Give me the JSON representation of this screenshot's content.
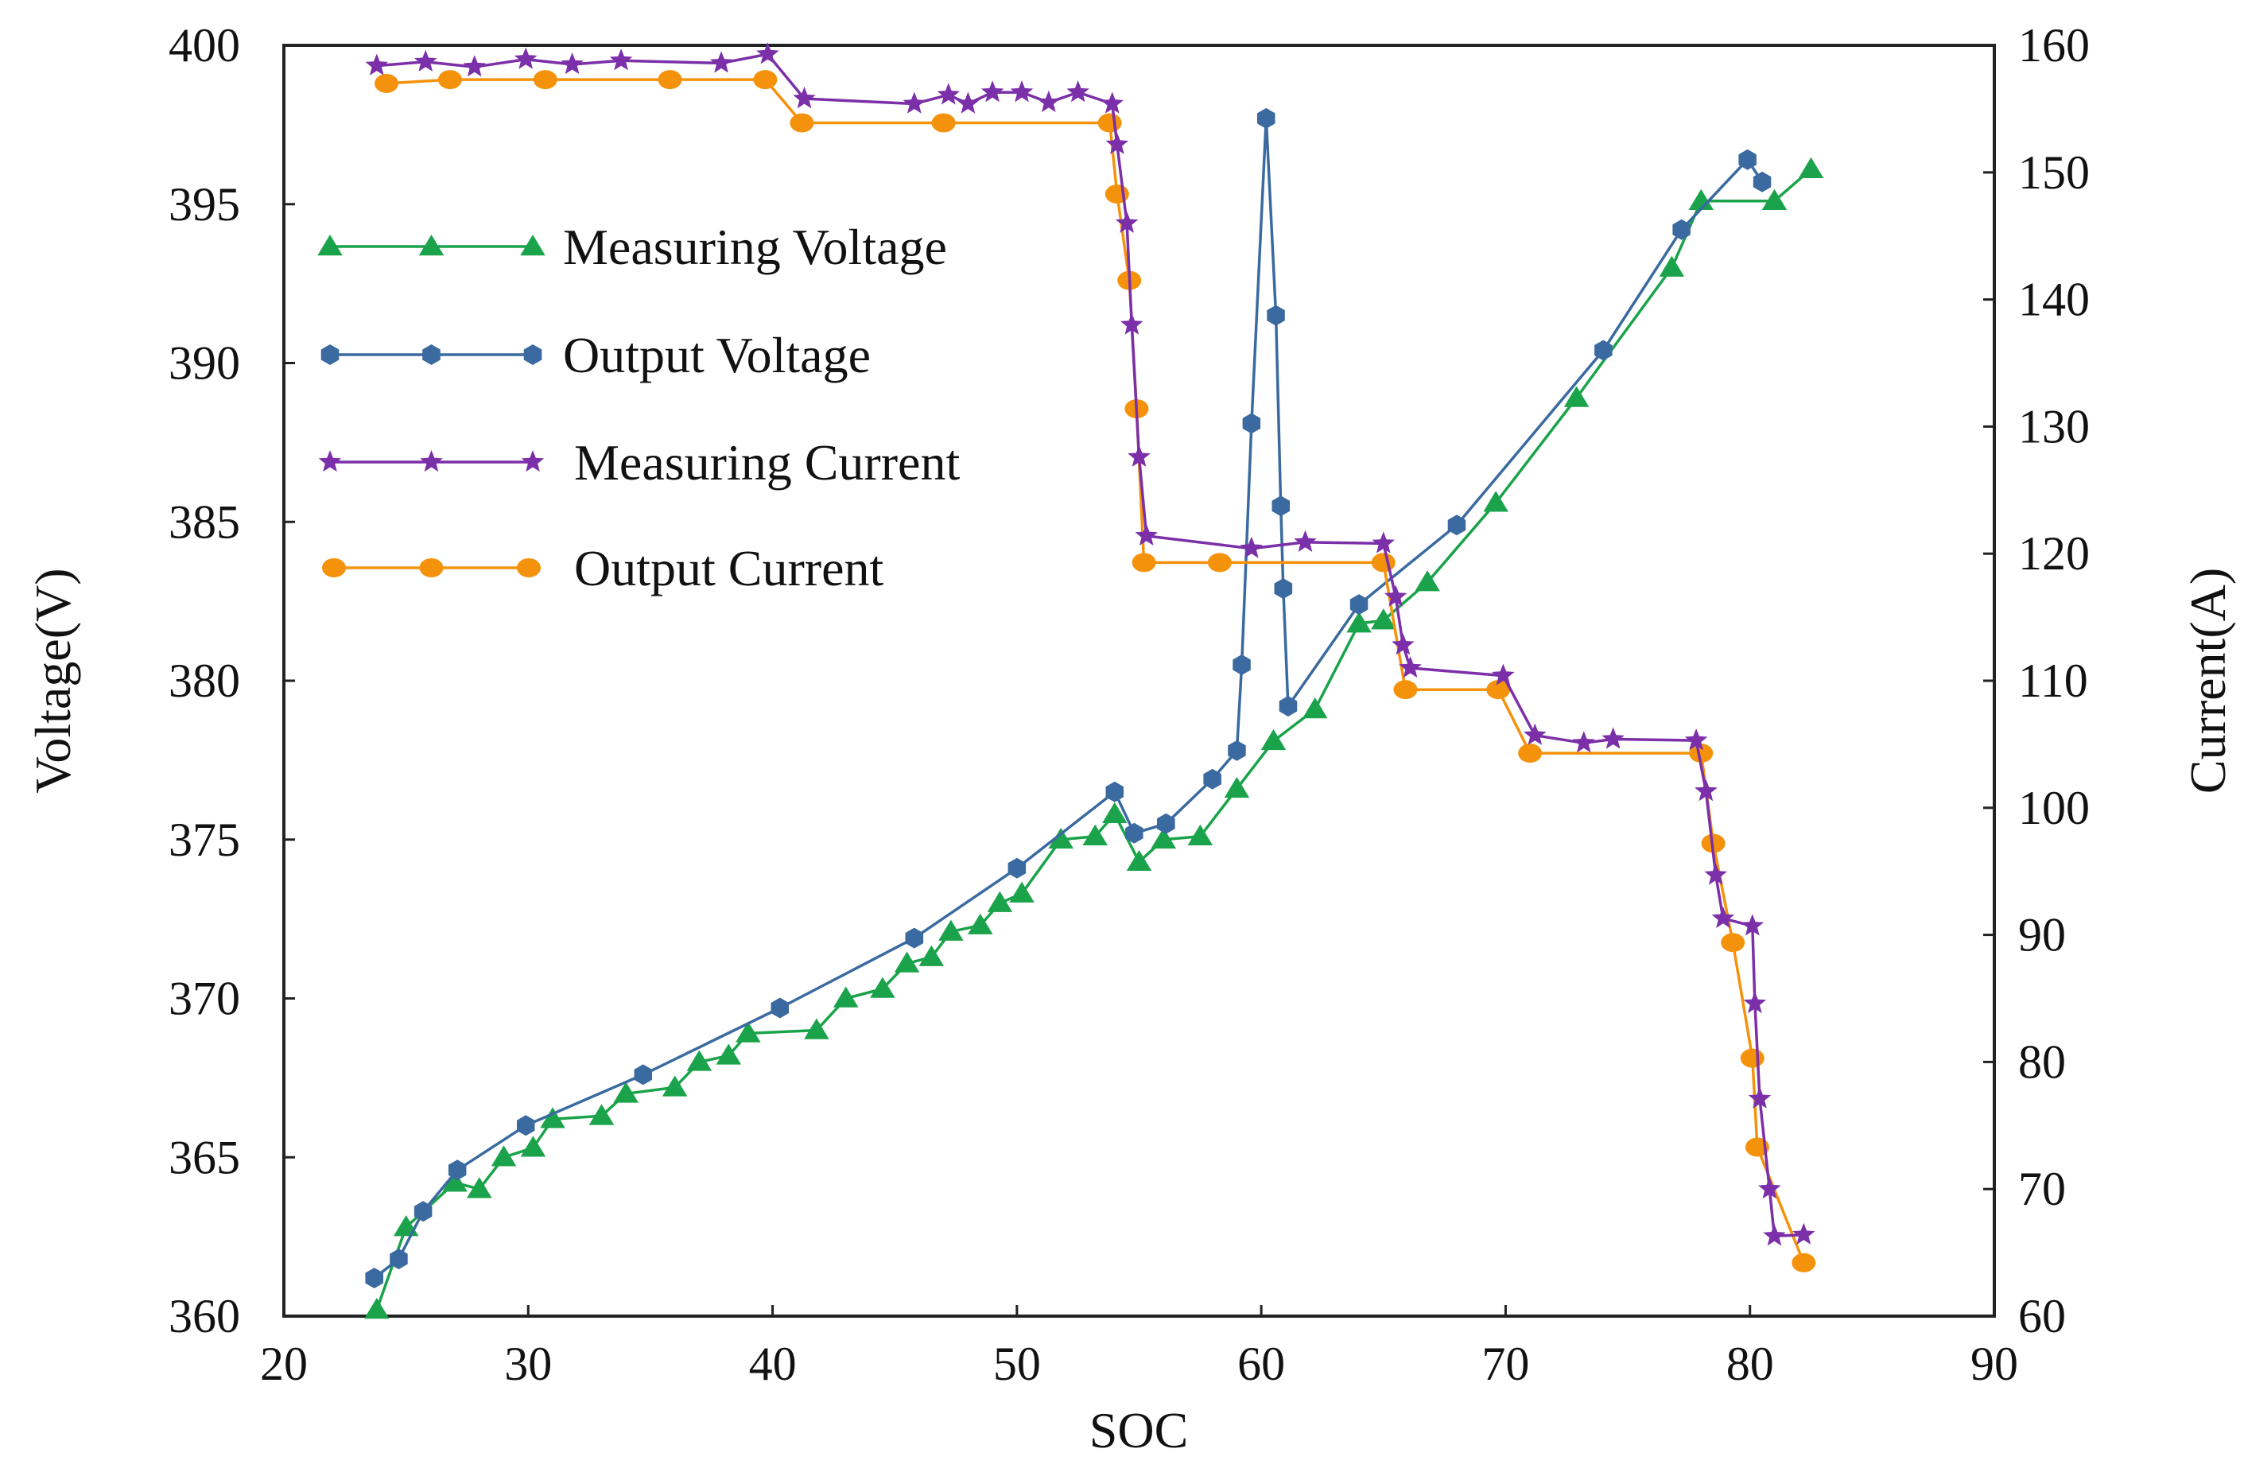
{
  "chart_data": {
    "type": "line",
    "title": "",
    "xlabel": "SOC",
    "ylabel_left": "Voltage(V)",
    "ylabel_right": "Current(A)",
    "xlim": [
      20,
      90
    ],
    "ylim_left": [
      360,
      400
    ],
    "ylim_right": [
      60,
      160
    ],
    "x_ticks": [
      20,
      30,
      40,
      50,
      60,
      70,
      80,
      90
    ],
    "y_left_ticks": [
      360,
      365,
      370,
      375,
      380,
      385,
      390,
      395,
      400
    ],
    "y_right_ticks": [
      60,
      70,
      80,
      90,
      100,
      110,
      120,
      130,
      140,
      150,
      160
    ],
    "grid": false,
    "legend_position": "upper-left",
    "series": [
      {
        "name": "Measuring Voltage",
        "axis": "left",
        "color": "#1aa34a",
        "marker": "triangle",
        "x": [
          23.8,
          25,
          27,
          28,
          29,
          30.2,
          31,
          33,
          34,
          36,
          37,
          38.2,
          39,
          41.8,
          43,
          44.5,
          45.5,
          46.5,
          47.3,
          48.5,
          49.3,
          50.2,
          51.8,
          53.2,
          54,
          55,
          56,
          57.5,
          59,
          60.5,
          62.2,
          64,
          65,
          66.8,
          69.6,
          72.9,
          76.8,
          78,
          81,
          82.5
        ],
        "y": [
          360.2,
          362.8,
          364.2,
          364.0,
          365.0,
          365.3,
          366.2,
          366.3,
          367.0,
          367.2,
          368.0,
          368.2,
          368.9,
          369.0,
          370.0,
          370.3,
          371.1,
          371.3,
          372.1,
          372.3,
          373.0,
          373.3,
          375.0,
          375.1,
          375.8,
          374.3,
          375.0,
          375.1,
          376.6,
          378.1,
          379.1,
          381.8,
          381.9,
          383.1,
          385.6,
          388.9,
          393.0,
          395.1,
          395.1,
          396.1
        ]
      },
      {
        "name": "Output Voltage",
        "axis": "left",
        "color": "#3a6aa0",
        "marker": "hexagon",
        "x": [
          23.7,
          24.7,
          25.7,
          27.1,
          29.9,
          34.7,
          40.3,
          45.8,
          50,
          54,
          54.8,
          56.1,
          58,
          59,
          59.2,
          59.6,
          60.2,
          60.6,
          60.8,
          60.9,
          61.1,
          64,
          68,
          74,
          77.2,
          79.9,
          80.5
        ],
        "y": [
          361.2,
          361.8,
          363.3,
          364.6,
          366.0,
          367.6,
          369.7,
          371.9,
          374.1,
          376.5,
          375.2,
          375.5,
          376.9,
          377.8,
          380.5,
          388.1,
          397.7,
          391.5,
          385.5,
          382.9,
          379.2,
          382.4,
          384.9,
          390.4,
          394.2,
          396.4,
          395.7
        ]
      },
      {
        "name": "Measuring Current",
        "axis": "right",
        "color": "#7b2fa8",
        "marker": "star",
        "x": [
          23.8,
          25.8,
          27.8,
          29.9,
          31.8,
          33.8,
          37.9,
          39.8,
          41.3,
          45.8,
          47.2,
          48,
          49,
          50.2,
          51.3,
          52.5,
          53.9,
          54.1,
          54.5,
          54.7,
          55,
          55.3,
          59.6,
          61.8,
          65,
          65.5,
          65.8,
          66.1,
          69.9,
          71.2,
          73.2,
          74.4,
          77.8,
          78.2,
          78.6,
          78.9,
          80.1,
          80.2,
          80.4,
          80.8,
          81,
          82.2
        ],
        "y": [
          158.4,
          158.7,
          158.3,
          158.9,
          158.5,
          158.8,
          158.6,
          159.3,
          155.8,
          155.4,
          156.1,
          155.4,
          156.3,
          156.3,
          155.5,
          156.3,
          155.4,
          152.2,
          146.0,
          138.0,
          127.6,
          121.4,
          120.4,
          120.9,
          120.8,
          116.6,
          112.8,
          111.0,
          110.4,
          105.7,
          105.1,
          105.4,
          105.3,
          101.3,
          94.7,
          91.3,
          90.7,
          84.6,
          77.1,
          70.0,
          66.3,
          66.4
        ]
      },
      {
        "name": "Output Current",
        "axis": "right",
        "color": "#f5920c",
        "marker": "circle",
        "x": [
          24.2,
          26.8,
          30.7,
          35.8,
          39.7,
          41.2,
          47,
          53.8,
          54.1,
          54.6,
          54.9,
          55.2,
          58.3,
          65,
          65.9,
          69.7,
          71,
          78,
          78.5,
          79.3,
          80.1,
          80.3,
          82.2
        ],
        "y": [
          157.0,
          157.3,
          157.3,
          157.3,
          157.3,
          153.9,
          153.9,
          153.9,
          148.3,
          141.5,
          131.4,
          119.3,
          119.3,
          119.3,
          109.3,
          109.3,
          104.3,
          104.3,
          97.2,
          89.4,
          80.3,
          73.3,
          64.2
        ]
      }
    ]
  }
}
